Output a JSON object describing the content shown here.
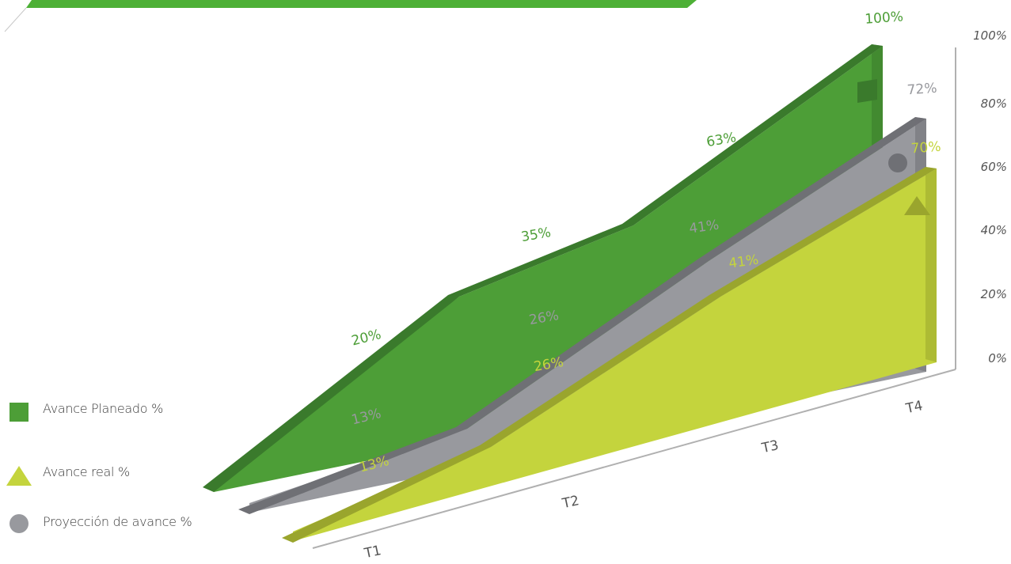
{
  "colors": {
    "planned": "#4d9e37",
    "planned_dark": "#3a7a2c",
    "projection": "#98999e",
    "projection_dark": "#6f7075",
    "real": "#c4d43d",
    "real_dark": "#9aa52d",
    "banner": "#4db036",
    "axis": "#b0b0b0"
  },
  "legend": {
    "items": [
      {
        "label": "Avance Planeado %",
        "shape": "square",
        "color": "#4d9e37"
      },
      {
        "label": "Avance real %",
        "shape": "triangle",
        "color": "#c4d43d"
      },
      {
        "label": "Proyección de avance %",
        "shape": "circle",
        "color": "#98999e"
      }
    ]
  },
  "chart_data": {
    "type": "area",
    "categories": [
      "T1",
      "T2",
      "T3",
      "T4"
    ],
    "y_ticks": [
      "0%",
      "20%",
      "40%",
      "60%",
      "80%",
      "100%"
    ],
    "ylim": [
      0,
      100
    ],
    "series": [
      {
        "name": "Avance Planeado %",
        "values": [
          20,
          35,
          63,
          100
        ],
        "labels": [
          "20%",
          "35%",
          "63%",
          "100%"
        ],
        "label_color": "#4d9e37"
      },
      {
        "name": "Proyección de avance %",
        "values": [
          13,
          26,
          41,
          72
        ],
        "labels": [
          "13%",
          "26%",
          "41%",
          "72%"
        ],
        "label_color": "#98999e"
      },
      {
        "name": "Avance real %",
        "values": [
          13,
          26,
          41,
          70
        ],
        "labels": [
          "13%",
          "26%",
          "41%",
          "70%"
        ],
        "label_color": "#c4d43d"
      }
    ]
  }
}
